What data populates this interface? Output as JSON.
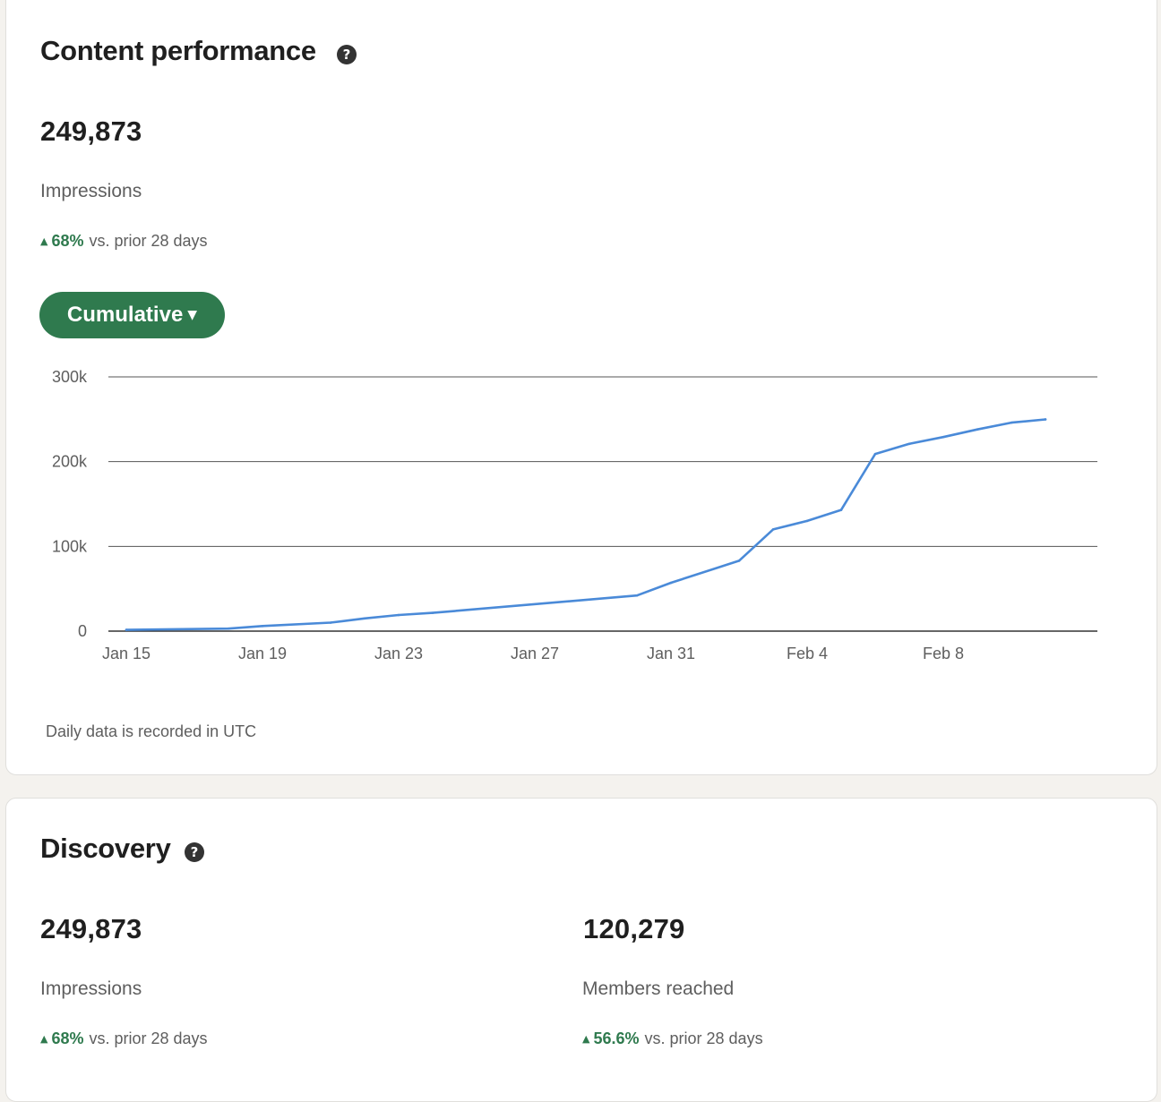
{
  "content_performance": {
    "title": "Content performance",
    "help_icon": "question-circle-icon",
    "impressions_value": "249,873",
    "impressions_label": "Impressions",
    "delta_pct": "68%",
    "delta_text": "vs. prior 28 days",
    "mode_button_label": "Cumulative",
    "footnote": "Daily data is recorded in UTC"
  },
  "chart_data": {
    "type": "line",
    "title": "",
    "xlabel": "",
    "ylabel": "",
    "x_tick_labels": [
      "Jan 15",
      "Jan 19",
      "Jan 23",
      "Jan 27",
      "Jan 31",
      "Feb 4",
      "Feb 8"
    ],
    "y_tick_labels": [
      "0",
      "100k",
      "200k",
      "300k"
    ],
    "ylim": [
      0,
      300000
    ],
    "xlim": [
      "2025-01-15",
      "2025-02-12"
    ],
    "grid": true,
    "line_color": "#4a8ad8",
    "series": [
      {
        "x": [
          "2025-01-15",
          "2025-01-18",
          "2025-01-19",
          "2025-01-21",
          "2025-01-22",
          "2025-01-23",
          "2025-01-24",
          "2025-01-30",
          "2025-01-31",
          "2025-02-02",
          "2025-02-03",
          "2025-02-04",
          "2025-02-05",
          "2025-02-06",
          "2025-02-07",
          "2025-02-08",
          "2025-02-09",
          "2025-02-10",
          "2025-02-11"
        ],
        "y": [
          1500,
          3000,
          6000,
          10000,
          15000,
          19000,
          21500,
          42000,
          57000,
          83000,
          120000,
          130000,
          143000,
          209000,
          221000,
          229000,
          238000,
          246000,
          249873
        ]
      }
    ]
  },
  "discovery": {
    "title": "Discovery",
    "help_icon": "question-circle-icon",
    "impressions_value": "249,873",
    "impressions_label": "Impressions",
    "impressions_delta_pct": "68%",
    "impressions_delta_text": "vs. prior 28 days",
    "members_value": "120,279",
    "members_label": "Members reached",
    "members_delta_pct": "56.6%",
    "members_delta_text": "vs. prior 28 days"
  },
  "colors": {
    "accent_green": "#2f7a4e",
    "line_blue": "#4a8ad8",
    "page_bg": "#f4f2ee"
  }
}
